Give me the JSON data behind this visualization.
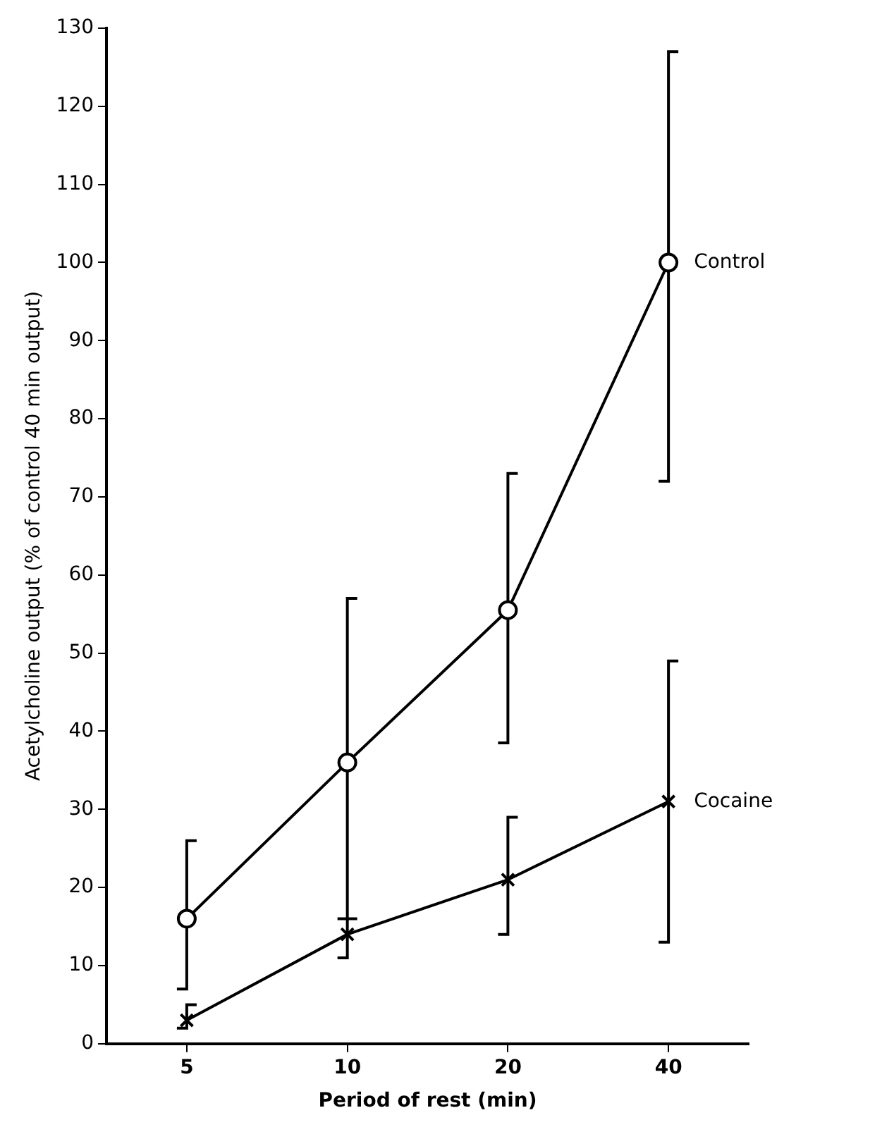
{
  "chart_data": {
    "type": "line",
    "xlabel": "Period of rest (min)",
    "ylabel": "Acetylcholine output (% of control 40 min output)",
    "categories": [
      "5",
      "10",
      "20",
      "40"
    ],
    "ylim": [
      0,
      130
    ],
    "yticks": [
      0,
      10,
      20,
      30,
      40,
      50,
      60,
      70,
      80,
      90,
      100,
      110,
      120,
      130
    ],
    "grid": false,
    "legend": false,
    "line_style": "solid",
    "series": [
      {
        "name": "Control",
        "color": "#000000",
        "marker": "circle",
        "values": [
          16,
          36,
          55.5,
          100
        ],
        "errors": [
          [
            7,
            26
          ],
          [
            16,
            57
          ],
          [
            38.5,
            73
          ],
          [
            72,
            127
          ]
        ]
      },
      {
        "name": "Cocaine",
        "color": "#000000",
        "marker": "cross",
        "values": [
          3,
          14,
          21,
          31
        ],
        "errors": [
          [
            2,
            5
          ],
          [
            11,
            16
          ],
          [
            14,
            29
          ],
          [
            13,
            49
          ]
        ]
      }
    ]
  }
}
